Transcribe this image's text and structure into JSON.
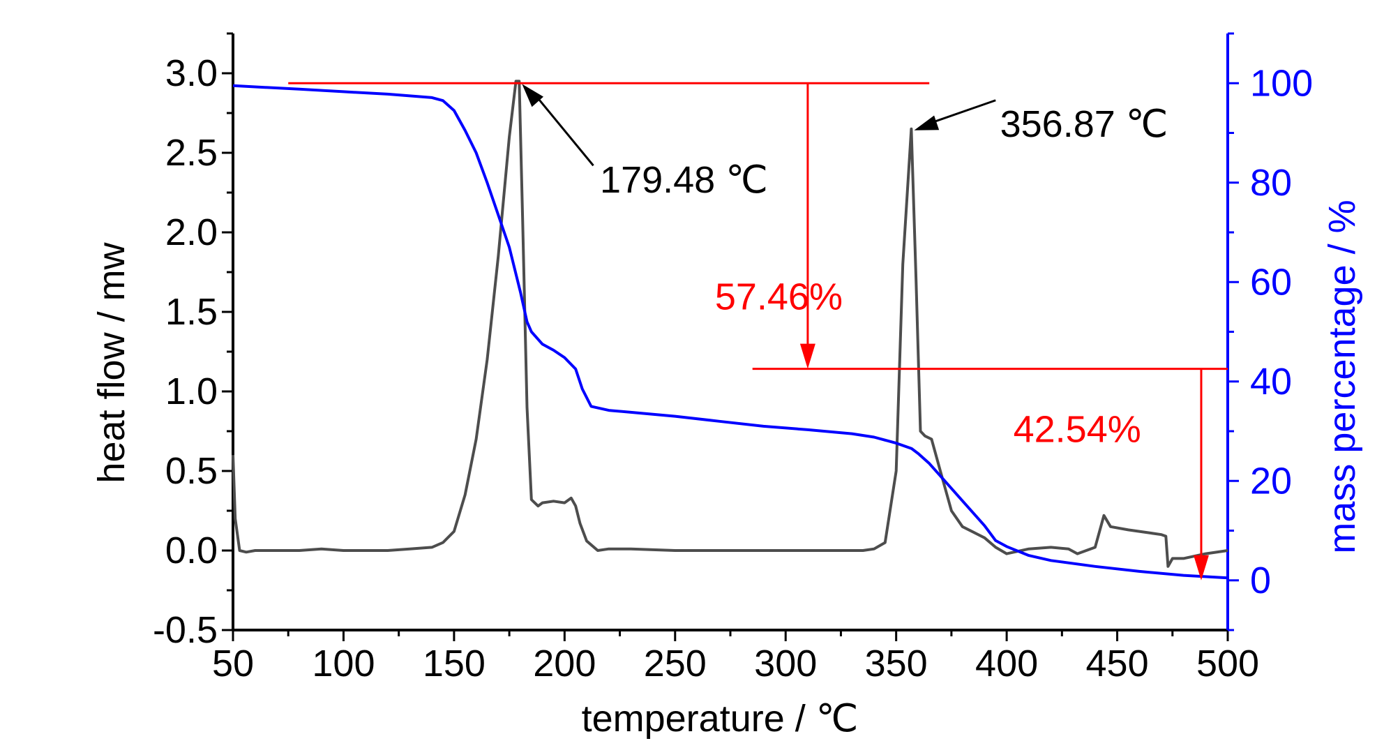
{
  "chart_data": {
    "type": "line",
    "xlabel": "temperature / ℃",
    "ylabel_left": "heat flow / mw",
    "ylabel_right": "mass percentage / %",
    "xlim": [
      50,
      500
    ],
    "ylim_left": [
      -0.5,
      3.25
    ],
    "ylim_right": [
      -10,
      110
    ],
    "x_ticks": [
      50,
      100,
      150,
      200,
      250,
      300,
      350,
      400,
      450,
      500
    ],
    "y_left_ticks": [
      -0.5,
      0.0,
      0.5,
      1.0,
      1.5,
      2.0,
      2.5,
      3.0
    ],
    "y_left_tick_labels": [
      "-0.5",
      "0.0",
      "0.5",
      "1.0",
      "1.5",
      "2.0",
      "2.5",
      "3.0"
    ],
    "y_right_ticks": [
      0,
      20,
      40,
      60,
      80,
      100
    ],
    "colors": {
      "heat_flow": "#4d4d4d",
      "mass": "#0000ff",
      "annotation": "#ff0000",
      "axis_right": "#0000ff",
      "axis_left": "#000000"
    },
    "series": [
      {
        "axis": "left",
        "color": "#4d4d4d",
        "x": [
          50,
          51,
          53,
          56,
          60,
          70,
          80,
          90,
          100,
          110,
          120,
          130,
          140,
          145,
          150,
          155,
          160,
          165,
          170,
          175,
          178,
          179.48,
          181,
          183,
          185,
          188,
          190,
          195,
          200,
          203,
          205,
          207,
          210,
          215,
          220,
          230,
          250,
          270,
          290,
          310,
          320,
          330,
          335,
          340,
          345,
          350,
          353,
          356.87,
          359,
          361,
          363,
          366,
          370,
          375,
          380,
          390,
          395,
          400,
          410,
          420,
          428,
          432,
          440,
          444,
          447,
          455,
          465,
          470,
          472,
          473,
          475,
          480,
          490,
          500
        ],
        "y": [
          0.6,
          0.2,
          0.0,
          -0.01,
          0.0,
          0.0,
          0.0,
          0.01,
          0.0,
          0.0,
          0.0,
          0.01,
          0.02,
          0.05,
          0.12,
          0.35,
          0.7,
          1.2,
          1.85,
          2.6,
          2.95,
          2.95,
          2.1,
          0.9,
          0.32,
          0.28,
          0.3,
          0.31,
          0.3,
          0.33,
          0.28,
          0.17,
          0.06,
          0.0,
          0.01,
          0.01,
          0.0,
          0.0,
          0.0,
          0.0,
          0.0,
          0.0,
          0.0,
          0.01,
          0.05,
          0.5,
          1.8,
          2.65,
          1.7,
          0.75,
          0.72,
          0.7,
          0.5,
          0.25,
          0.15,
          0.08,
          0.02,
          -0.02,
          0.01,
          0.02,
          0.01,
          -0.02,
          0.02,
          0.22,
          0.15,
          0.13,
          0.11,
          0.1,
          0.09,
          -0.1,
          -0.05,
          -0.05,
          -0.02,
          0.0
        ]
      },
      {
        "axis": "right",
        "color": "#0000ff",
        "x": [
          50,
          80,
          100,
          120,
          140,
          145,
          150,
          155,
          160,
          165,
          170,
          175,
          180,
          183,
          185,
          190,
          195,
          200,
          205,
          208,
          212,
          220,
          230,
          250,
          270,
          290,
          310,
          330,
          340,
          350,
          357,
          360,
          365,
          370,
          380,
          390,
          395,
          400,
          410,
          420,
          440,
          460,
          480,
          500
        ],
        "y": [
          99.5,
          98.8,
          98.3,
          97.8,
          97.1,
          96.5,
          94.5,
          90.5,
          86.0,
          80.0,
          73.5,
          67.0,
          58.0,
          52.0,
          50.0,
          47.5,
          46.3,
          44.8,
          42.5,
          38.5,
          35.0,
          34.2,
          33.8,
          33.0,
          32.0,
          31.0,
          30.3,
          29.5,
          28.8,
          27.6,
          26.5,
          25.5,
          23.5,
          21.0,
          16.0,
          11.0,
          8.0,
          6.8,
          5.0,
          4.0,
          2.8,
          1.8,
          1.0,
          0.5
        ]
      }
    ],
    "annotations": {
      "peak1_label": "179.48 ℃",
      "peak2_label": "356.87 ℃",
      "loss1_label": "57.46%",
      "loss2_label": "42.54%"
    }
  }
}
